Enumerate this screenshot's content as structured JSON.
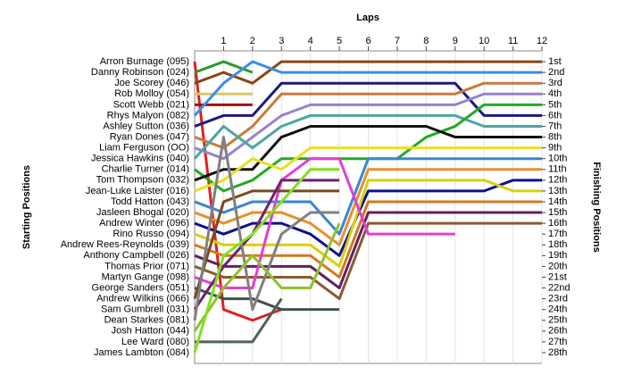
{
  "chart_data": {
    "type": "line",
    "title": "Laps",
    "ylabel": "Starting Positions",
    "y2label": "Finishing Positions",
    "x": [
      0,
      1,
      2,
      3,
      4,
      5,
      6,
      7,
      8,
      9,
      10,
      11,
      12
    ],
    "xlim": [
      0,
      12
    ],
    "xticks": [
      1,
      2,
      3,
      4,
      5,
      6,
      7,
      8,
      9,
      10,
      11,
      12
    ],
    "ylim": [
      0,
      29
    ],
    "y_reversed": true,
    "grid": true,
    "y2ticks": [
      {
        "value": 1,
        "label": "1st"
      },
      {
        "value": 2,
        "label": "2nd"
      },
      {
        "value": 3,
        "label": "3rd"
      },
      {
        "value": 4,
        "label": "4th"
      },
      {
        "value": 5,
        "label": "5th"
      },
      {
        "value": 6,
        "label": "6th"
      },
      {
        "value": 7,
        "label": "7th"
      },
      {
        "value": 8,
        "label": "8th"
      },
      {
        "value": 9,
        "label": "9th"
      },
      {
        "value": 10,
        "label": "10th"
      },
      {
        "value": 11,
        "label": "11th"
      },
      {
        "value": 12,
        "label": "12th"
      },
      {
        "value": 13,
        "label": "13th"
      },
      {
        "value": 14,
        "label": "14th"
      },
      {
        "value": 15,
        "label": "15th"
      },
      {
        "value": 16,
        "label": "16th"
      },
      {
        "value": 17,
        "label": "17th"
      },
      {
        "value": 18,
        "label": "18th"
      },
      {
        "value": 19,
        "label": "19th"
      },
      {
        "value": 20,
        "label": "20th"
      },
      {
        "value": 21,
        "label": "21st"
      },
      {
        "value": 22,
        "label": "22nd"
      },
      {
        "value": 23,
        "label": "23rd"
      },
      {
        "value": 24,
        "label": "24th"
      },
      {
        "value": 25,
        "label": "25th"
      },
      {
        "value": 26,
        "label": "26th"
      },
      {
        "value": 27,
        "label": "27th"
      },
      {
        "value": 28,
        "label": "28th"
      }
    ],
    "series": [
      {
        "name": "Arron Burnage (095)",
        "color": "#e02020",
        "values": [
          1,
          24,
          25,
          24,
          null,
          null,
          null,
          null,
          null,
          null,
          null,
          null,
          null
        ]
      },
      {
        "name": "Danny Robinson (024)",
        "color": "#2a9a2a",
        "values": [
          2,
          1,
          2,
          null,
          null,
          null,
          null,
          null,
          null,
          null,
          null,
          null,
          null
        ]
      },
      {
        "name": "Joe Scorey (046)",
        "color": "#8b4513",
        "values": [
          3,
          2,
          3,
          1,
          1,
          1,
          1,
          1,
          1,
          1,
          1,
          1,
          1
        ]
      },
      {
        "name": "Rob Molloy (054)",
        "color": "#d6c860",
        "values": [
          4,
          4,
          4,
          null,
          null,
          null,
          null,
          null,
          null,
          null,
          null,
          null,
          null
        ]
      },
      {
        "name": "Scott Webb (021)",
        "color": "#a01010",
        "values": [
          5,
          5,
          5,
          null,
          null,
          null,
          null,
          null,
          null,
          null,
          null,
          null,
          null
        ]
      },
      {
        "name": "Rhys Malyon (082)",
        "color": "#3a8ee6",
        "values": [
          6,
          3,
          1,
          2,
          2,
          2,
          2,
          2,
          2,
          2,
          2,
          2,
          2
        ]
      },
      {
        "name": "Ashley Sutton (036)",
        "color": "#1a1a80",
        "values": [
          7,
          6,
          6,
          3,
          3,
          3,
          3,
          3,
          3,
          3,
          6,
          6,
          6
        ]
      },
      {
        "name": "Ryan Dones (047)",
        "color": "#c87a3a",
        "values": [
          8,
          9,
          7,
          4,
          4,
          4,
          4,
          4,
          4,
          4,
          3,
          3,
          3
        ]
      },
      {
        "name": "Liam Ferguson (OO)",
        "color": "#9a80d0",
        "values": [
          9,
          10,
          8,
          6,
          5,
          5,
          5,
          5,
          5,
          5,
          4,
          4,
          4
        ]
      },
      {
        "name": "Jessica Hawkins (040)",
        "color": "#4aa8a0",
        "values": [
          10,
          7,
          9,
          7,
          6,
          6,
          6,
          6,
          6,
          6,
          7,
          7,
          7
        ]
      },
      {
        "name": "Charlie Turner (014)",
        "color": "#22aa22",
        "values": [
          11,
          13,
          12,
          10,
          10,
          10,
          10,
          10,
          8,
          7,
          5,
          5,
          5
        ]
      },
      {
        "name": "Tom Thompson (032)",
        "color": "#111111",
        "values": [
          12,
          11,
          11,
          8,
          7,
          7,
          7,
          7,
          7,
          8,
          8,
          8,
          8
        ]
      },
      {
        "name": "Jean-Luke Laister (016)",
        "color": "#e8e020",
        "values": [
          13,
          12,
          10,
          11,
          9,
          9,
          9,
          9,
          9,
          9,
          9,
          9,
          9
        ]
      },
      {
        "name": "Todd Hatton (043)",
        "color": "#3a86d0",
        "values": [
          14,
          15,
          14,
          14,
          14,
          17,
          10,
          10,
          10,
          10,
          10,
          10,
          10
        ]
      },
      {
        "name": "Jasleen Bhogal (020)",
        "color": "#e8902a",
        "values": [
          15,
          16,
          15,
          15,
          16,
          18,
          11,
          11,
          11,
          11,
          11,
          11,
          11
        ]
      },
      {
        "name": "Andrew Winter (096)",
        "color": "#10108a",
        "values": [
          16,
          17,
          16,
          16,
          17,
          19,
          13,
          13,
          13,
          13,
          13,
          12,
          12
        ]
      },
      {
        "name": "Rino Russo (094)",
        "color": "#d8d010",
        "values": [
          17,
          18,
          18,
          18,
          18,
          20,
          12,
          12,
          12,
          12,
          12,
          13,
          13
        ]
      },
      {
        "name": "Andrew Rees-Reynolds (039)",
        "color": "#d07a20",
        "values": [
          18,
          19,
          19,
          19,
          19,
          21,
          14,
          14,
          14,
          14,
          14,
          14,
          14
        ]
      },
      {
        "name": "Anthony Campbell (026)",
        "color": "#602060",
        "values": [
          19,
          20,
          20,
          20,
          20,
          22,
          15,
          15,
          15,
          15,
          15,
          15,
          15
        ]
      },
      {
        "name": "Thomas Prior (071)",
        "color": "#8a5a30",
        "values": [
          20,
          21,
          21,
          21,
          21,
          23,
          16,
          16,
          16,
          16,
          16,
          16,
          16
        ]
      },
      {
        "name": "Martyn Gange (098)",
        "color": "#e040d0",
        "values": [
          21,
          22,
          22,
          12,
          10,
          10,
          17,
          17,
          17,
          17,
          null,
          null,
          null
        ]
      },
      {
        "name": "George Sanders (051)",
        "color": "#405050",
        "values": [
          22,
          23,
          23,
          24,
          24,
          24,
          null,
          null,
          null,
          null,
          null,
          null,
          null
        ]
      },
      {
        "name": "Andrew Wilkins (066)",
        "color": "#7a4a20",
        "values": [
          23,
          14,
          13,
          13,
          13,
          13,
          null,
          null,
          null,
          null,
          null,
          null,
          null
        ]
      },
      {
        "name": "Sam Gumbrell (031)",
        "color": "#702070",
        "values": [
          24,
          20,
          17,
          12,
          12,
          12,
          null,
          null,
          null,
          null,
          null,
          null,
          null
        ]
      },
      {
        "name": "Dean Starkes (081)",
        "color": "#808080",
        "values": [
          25,
          8,
          24,
          17,
          15,
          15,
          null,
          null,
          null,
          null,
          null,
          null,
          null
        ]
      },
      {
        "name": "Josh Hatton (044)",
        "color": "#90c030",
        "values": [
          26,
          22,
          19,
          22,
          22,
          16,
          null,
          null,
          null,
          null,
          null,
          null,
          null
        ]
      },
      {
        "name": "Lee Ward (080)",
        "color": "#506060",
        "values": [
          27,
          27,
          27,
          23,
          null,
          null,
          null,
          null,
          null,
          null,
          null,
          null,
          null
        ]
      },
      {
        "name": "James Lambton (084)",
        "color": "#80e020",
        "values": [
          28,
          19,
          17,
          14,
          11,
          11,
          null,
          null,
          null,
          null,
          null,
          null,
          null
        ]
      }
    ]
  }
}
